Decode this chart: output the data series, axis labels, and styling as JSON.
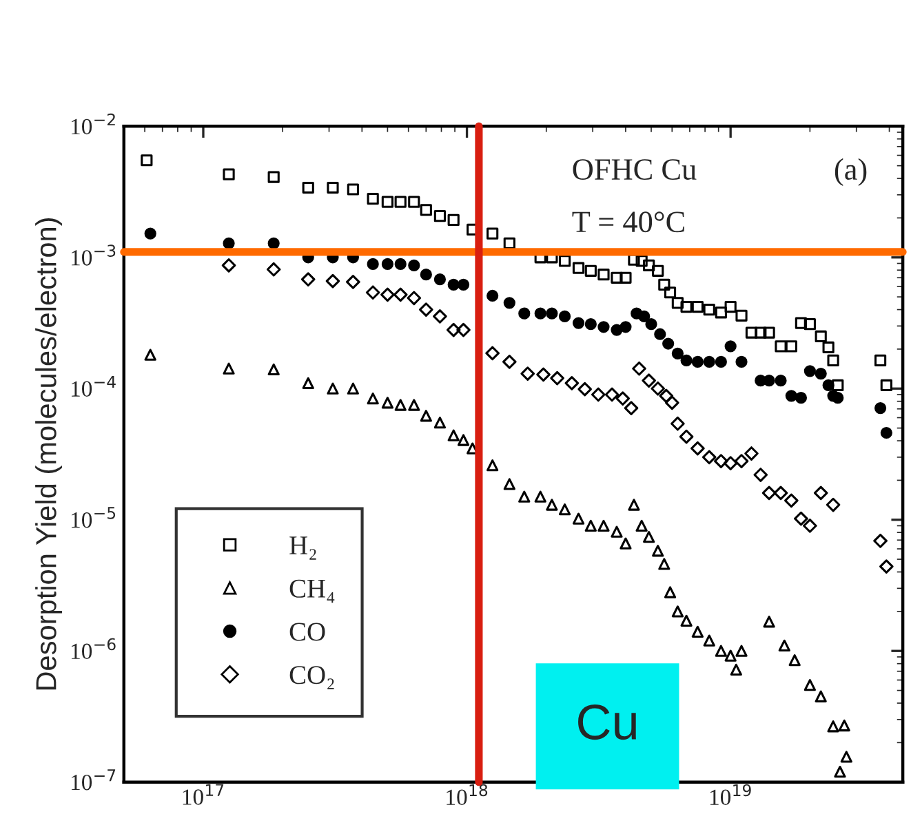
{
  "chart_data": {
    "type": "scatter",
    "ylabel": "Desorption Yield (molecules/electron)",
    "log": "xy",
    "xlim": [
      5e+16,
      4.5e+19
    ],
    "ylim": [
      1e-07,
      0.01
    ],
    "xticks": [
      {
        "value": 1e+17,
        "label": "10$^{17}$"
      },
      {
        "value": 1e+18,
        "label": "10$^{18}$"
      },
      {
        "value": 1e+19,
        "label": "10$^{19}$"
      }
    ],
    "yticks": [
      {
        "value": 1e-07,
        "label": "10$^{−7}$"
      },
      {
        "value": 1e-06,
        "label": "10$^{−6}$"
      },
      {
        "value": 1e-05,
        "label": "10$^{−5}$"
      },
      {
        "value": 0.0001,
        "label": "10$^{−4}$"
      },
      {
        "value": 0.001,
        "label": "10$^{−3}$"
      },
      {
        "value": 0.01,
        "label": "10$^{−2}$"
      }
    ],
    "grid": false,
    "legend": "bottom left",
    "annotations": [
      "OFHC Cu",
      "T = 40°C",
      "(a)",
      "Cu"
    ],
    "ref_lines": [
      {
        "axis": "y",
        "value": 0.0011,
        "label": null,
        "color": "#ff6a00"
      },
      {
        "axis": "x",
        "value": 1.11e+18,
        "label": null,
        "color": "#d81e10"
      }
    ],
    "series": [
      {
        "name": "H₂",
        "color": "#000000",
        "marker": "square",
        "x": [
          6.1e+16,
          1.25e+17,
          1.85e+17,
          2.5e+17,
          3.1e+17,
          3.7e+17,
          4.4e+17,
          5e+17,
          5.6e+17,
          6.3e+17,
          7e+17,
          7.9e+17,
          8.9e+17,
          1.05e+18,
          1.25e+18,
          1.45e+18,
          1.9e+18,
          2.1e+18,
          2.35e+18,
          2.65e+18,
          2.95e+18,
          3.3e+18,
          3.7e+18,
          4e+18,
          4.3e+18,
          4.6e+18,
          4.9e+18,
          5.3e+18,
          5.6e+18,
          5.9e+18,
          6.3e+18,
          6.8e+18,
          7.5e+18,
          8.3e+18,
          9.2e+18,
          1e+19,
          1.1e+19,
          1.2e+19,
          1.3e+19,
          1.4e+19,
          1.55e+19,
          1.7e+19,
          1.85e+19,
          2e+19,
          2.2e+19,
          2.35e+19,
          2.45e+19,
          2.55e+19,
          3.7e+19,
          3.9e+19
        ],
        "values": [
          0.0055,
          0.0043,
          0.0041,
          0.0034,
          0.0034,
          0.0033,
          0.0028,
          0.00265,
          0.00265,
          0.00265,
          0.0023,
          0.00207,
          0.00193,
          0.00163,
          0.00152,
          0.00128,
          0.001,
          0.001,
          0.00094,
          0.00083,
          0.00079,
          0.00074,
          0.0007,
          0.0007,
          0.00096,
          0.00094,
          0.00087,
          0.00079,
          0.00062,
          0.00054,
          0.00045,
          0.00042,
          0.00042,
          0.0004,
          0.00038,
          0.00042,
          0.00036,
          0.000267,
          0.000267,
          0.000267,
          0.00021,
          0.00021,
          0.000316,
          0.00031,
          0.00025,
          0.000206,
          0.000164,
          0.000106,
          0.000164,
          0.000106
        ]
      },
      {
        "name": "CH₄",
        "color": "#000000",
        "marker": "triangle",
        "x": [
          6.3e+16,
          1.25e+17,
          1.85e+17,
          2.5e+17,
          3.1e+17,
          3.7e+17,
          4.4e+17,
          5e+17,
          5.6e+17,
          6.3e+17,
          7e+17,
          7.9e+17,
          8.9e+17,
          9.7e+17,
          1.05e+18,
          1.25e+18,
          1.45e+18,
          1.65e+18,
          1.9e+18,
          2.1e+18,
          2.35e+18,
          2.65e+18,
          2.95e+18,
          3.3e+18,
          3.7e+18,
          4e+18,
          4.3e+18,
          4.6e+18,
          4.9e+18,
          5.3e+18,
          5.6e+18,
          5.9e+18,
          6.3e+18,
          6.8e+18,
          7.5e+18,
          8.3e+18,
          9.2e+18,
          1e+19,
          1.05e+19,
          1.1e+19,
          1.4e+19,
          1.6e+19,
          1.75e+19,
          2e+19,
          2.2e+19,
          2.45e+19,
          2.7e+19,
          2.75e+19,
          2.6e+19
        ],
        "values": [
          0.000181,
          0.000142,
          0.00014,
          0.00011,
          0.0001,
          0.0001,
          8.4e-05,
          7.8e-05,
          7.5e-05,
          7.5e-05,
          6.2e-05,
          5.5e-05,
          4.4e-05,
          4.05e-05,
          3.5e-05,
          2.6e-05,
          1.87e-05,
          1.5e-05,
          1.5e-05,
          1.3e-05,
          1.2e-05,
          1.02e-05,
          9e-06,
          9e-06,
          8.1e-06,
          6.6e-06,
          1.3e-05,
          9e-06,
          7.4e-06,
          5.8e-06,
          4.6e-06,
          2.8e-06,
          2e-06,
          1.7e-06,
          1.4e-06,
          1.2e-06,
          1e-06,
          9.2e-07,
          7.2e-07,
          1e-06,
          1.67e-06,
          1.1e-06,
          8.5e-07,
          5.5e-07,
          4.5e-07,
          2.66e-07,
          2.7e-07,
          1.56e-07,
          1.2e-07
        ]
      },
      {
        "name": "CO",
        "color": "#000000",
        "marker": "circle",
        "x": [
          6.3e+16,
          1.25e+17,
          1.85e+17,
          2.5e+17,
          3.1e+17,
          3.7e+17,
          4.4e+17,
          5e+17,
          5.6e+17,
          6.3e+17,
          7e+17,
          7.9e+17,
          8.9e+17,
          9.7e+17,
          1.25e+18,
          1.45e+18,
          1.65e+18,
          1.9e+18,
          2.1e+18,
          2.35e+18,
          2.65e+18,
          2.95e+18,
          3.3e+18,
          3.7e+18,
          4e+18,
          4.4e+18,
          4.7e+18,
          5e+18,
          5.4e+18,
          5.8e+18,
          6.3e+18,
          6.8e+18,
          7.5e+18,
          8.3e+18,
          9.2e+18,
          1e+19,
          1.1e+19,
          1.3e+19,
          1.4e+19,
          1.55e+19,
          1.7e+19,
          1.85e+19,
          2e+19,
          2.2e+19,
          2.35e+19,
          2.45e+19,
          2.55e+19,
          3.7e+19,
          3.9e+19
        ],
        "values": [
          0.00152,
          0.00128,
          0.00128,
          0.001,
          0.001,
          0.001,
          0.00089,
          0.00089,
          0.00089,
          0.00087,
          0.00074,
          0.00068,
          0.00062,
          0.00062,
          0.00051,
          0.00045,
          0.000374,
          0.000374,
          0.000374,
          0.000355,
          0.000316,
          0.00031,
          0.000295,
          0.00028,
          0.000295,
          0.000374,
          0.000355,
          0.00031,
          0.00026,
          0.00022,
          0.000185,
          0.000164,
          0.00016,
          0.00016,
          0.00016,
          0.00021,
          0.00016,
          0.000115,
          0.000115,
          0.000115,
          8.8e-05,
          8.5e-05,
          0.000136,
          0.00013,
          0.000106,
          8.8e-05,
          8.5e-05,
          7.1e-05,
          4.6e-05
        ]
      },
      {
        "name": "CO₂",
        "color": "#000000",
        "marker": "diamond",
        "x": [
          1.25e+17,
          1.85e+17,
          2.5e+17,
          3.1e+17,
          3.7e+17,
          4.4e+17,
          5e+17,
          5.6e+17,
          6.3e+17,
          7e+17,
          7.9e+17,
          8.9e+17,
          9.7e+17,
          1.25e+18,
          1.45e+18,
          1.7e+18,
          1.95e+18,
          2.2e+18,
          2.5e+18,
          2.8e+18,
          3.15e+18,
          3.55e+18,
          3.9e+18,
          4.2e+18,
          4.5e+18,
          4.9e+18,
          5.3e+18,
          5.7e+18,
          6e+18,
          6.3e+18,
          6.8e+18,
          7.5e+18,
          8.3e+18,
          9.2e+18,
          1e+19,
          1.1e+19,
          1.2e+19,
          1.3e+19,
          1.4e+19,
          1.55e+19,
          1.7e+19,
          1.85e+19,
          2e+19,
          2.2e+19,
          2.45e+19,
          3.7e+19,
          3.9e+19
        ],
        "values": [
          0.00087,
          0.00081,
          0.00068,
          0.00066,
          0.00065,
          0.00054,
          0.00052,
          0.00052,
          0.00049,
          0.0004,
          0.000355,
          0.00028,
          0.00028,
          0.000186,
          0.00016,
          0.00013,
          0.000128,
          0.00012,
          0.00011,
          9.9e-05,
          9e-05,
          9e-05,
          8.4e-05,
          7.1e-05,
          0.000142,
          0.000115,
          0.0001,
          8.8e-05,
          7.8e-05,
          5.4e-05,
          4.3e-05,
          3.5e-05,
          3e-05,
          2.8e-05,
          2.7e-05,
          2.8e-05,
          3.2e-05,
          2.2e-05,
          1.6e-05,
          1.6e-05,
          1.4e-05,
          1.02e-05,
          9e-06,
          1.6e-05,
          1.3e-05,
          6.9e-06,
          4.4e-06
        ]
      }
    ]
  }
}
